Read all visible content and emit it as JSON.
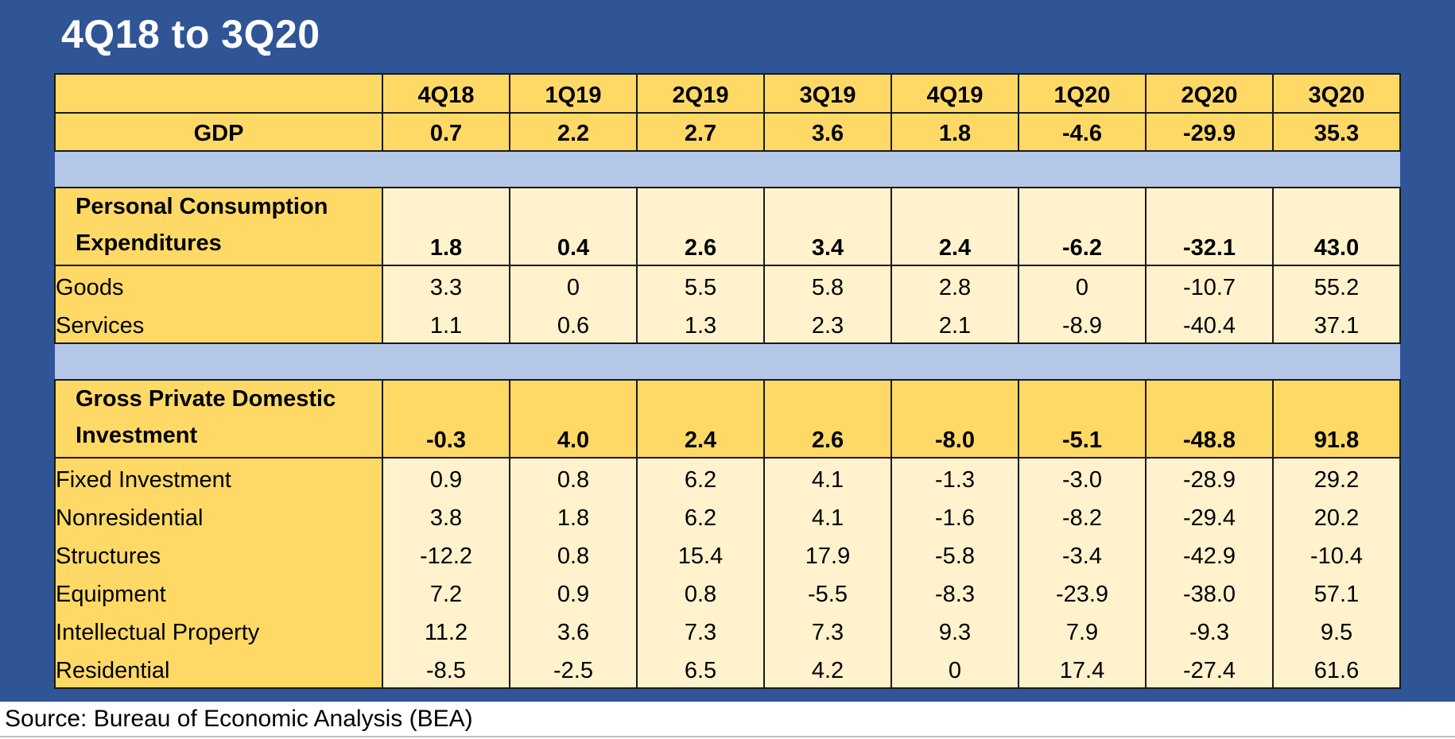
{
  "title": "4Q18 to 3Q20",
  "columns": [
    "4Q18",
    "1Q19",
    "2Q19",
    "3Q19",
    "4Q19",
    "1Q20",
    "2Q20",
    "3Q20"
  ],
  "gdp": {
    "label": "GDP",
    "values": [
      "0.7",
      "2.2",
      "2.7",
      "3.6",
      "1.8",
      "-4.6",
      "-29.9",
      "35.3"
    ]
  },
  "pce": {
    "label_line1": "Personal Consumption",
    "label_line2": "Expenditures",
    "values": [
      "1.8",
      "0.4",
      "2.6",
      "3.4",
      "2.4",
      "-6.2",
      "-32.1",
      "43.0"
    ],
    "rows": [
      {
        "label": "Goods",
        "values": [
          "3.3",
          "0",
          "5.5",
          "5.8",
          "2.8",
          "0",
          "-10.7",
          "55.2"
        ]
      },
      {
        "label": "Services",
        "values": [
          "1.1",
          "0.6",
          "1.3",
          "2.3",
          "2.1",
          "-8.9",
          "-40.4",
          "37.1"
        ]
      }
    ]
  },
  "gpdi": {
    "label_line1": "Gross Private Domestic",
    "label_line2": "Investment",
    "values": [
      "-0.3",
      "4.0",
      "2.4",
      "2.6",
      "-8.0",
      "-5.1",
      "-48.8",
      "91.8"
    ],
    "rows": [
      {
        "label": "Fixed Investment",
        "values": [
          "0.9",
          "0.8",
          "6.2",
          "4.1",
          "-1.3",
          "-3.0",
          "-28.9",
          "29.2"
        ]
      },
      {
        "label": "Nonresidential",
        "values": [
          "3.8",
          "1.8",
          "6.2",
          "4.1",
          "-1.6",
          "-8.2",
          "-29.4",
          "20.2"
        ]
      },
      {
        "label": "Structures",
        "values": [
          "-12.2",
          "0.8",
          "15.4",
          "17.9",
          "-5.8",
          "-3.4",
          "-42.9",
          "-10.4"
        ]
      },
      {
        "label": "Equipment",
        "values": [
          "7.2",
          "0.9",
          "0.8",
          "-5.5",
          "-8.3",
          "-23.9",
          "-38.0",
          "57.1"
        ]
      },
      {
        "label": "Intellectual Property",
        "values": [
          "11.2",
          "3.6",
          "7.3",
          "7.3",
          "9.3",
          "7.9",
          "-9.3",
          "9.5"
        ]
      },
      {
        "label": "Residential",
        "values": [
          "-8.5",
          "-2.5",
          "6.5",
          "4.2",
          "0",
          "17.4",
          "-27.4",
          "61.6"
        ]
      }
    ]
  },
  "source": "Source: Bureau of Economic Analysis (BEA)",
  "colors": {
    "panel": "#2f5597",
    "header_gold": "#ffd966",
    "cell_light": "#fff2cc",
    "separator": "#b4c7e7"
  }
}
